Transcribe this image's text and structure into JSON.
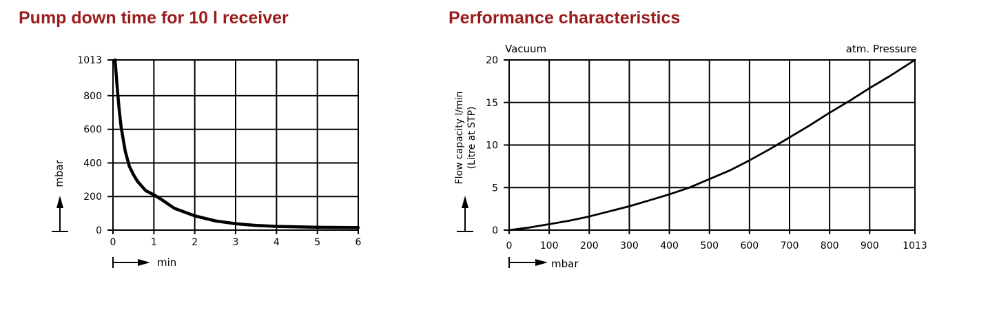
{
  "headings": {
    "left": "Pump down time for 10 l receiver",
    "right": "Performance characteristics"
  },
  "colors": {
    "heading": "#9b1c1c",
    "ink": "#000000",
    "background": "#ffffff"
  },
  "chart_data": [
    {
      "type": "line",
      "title": "Pump down time for 10 l receiver",
      "xlabel": "min",
      "ylabel": "mbar",
      "xlim": [
        0,
        6
      ],
      "ylim": [
        0,
        1013
      ],
      "x_ticks": [
        0,
        1,
        2,
        3,
        4,
        5,
        6
      ],
      "y_ticks": [
        0,
        200,
        400,
        600,
        800,
        1013
      ],
      "x_tick_labels": [
        "0",
        "1",
        "2",
        "3",
        "4",
        "5",
        "6"
      ],
      "y_tick_labels": [
        "0",
        "200",
        "400",
        "600",
        "800",
        "1013"
      ],
      "grid": true,
      "series": [
        {
          "x": [
            0.05,
            0.1,
            0.15,
            0.2,
            0.3,
            0.4,
            0.5,
            0.6,
            0.8,
            1.0,
            1.2,
            1.5,
            2.0,
            2.5,
            3.0,
            3.5,
            4.0,
            5.0,
            6.0
          ],
          "values": [
            1013,
            860,
            720,
            610,
            470,
            380,
            330,
            290,
            235,
            210,
            180,
            130,
            85,
            55,
            38,
            28,
            22,
            17,
            15
          ]
        }
      ]
    },
    {
      "type": "line",
      "title": "Performance characteristics",
      "xlabel": "mbar",
      "ylabel": [
        "Flow capacity l/min",
        "(Litre at STP)"
      ],
      "annotations": {
        "left": "Vacuum",
        "right": "atm. Pressure"
      },
      "xlim": [
        0,
        1013
      ],
      "ylim": [
        0,
        20
      ],
      "x_ticks": [
        0,
        100,
        200,
        300,
        400,
        500,
        600,
        700,
        800,
        900,
        1013
      ],
      "y_ticks": [
        0,
        5,
        10,
        15,
        20
      ],
      "x_tick_labels": [
        "0",
        "100",
        "200",
        "300",
        "400",
        "500",
        "600",
        "700",
        "800",
        "900",
        "1013"
      ],
      "y_tick_labels": [
        "0",
        "5",
        "10",
        "15",
        "20"
      ],
      "grid": true,
      "series": [
        {
          "x": [
            0,
            50,
            100,
            150,
            200,
            250,
            300,
            350,
            400,
            450,
            500,
            550,
            600,
            650,
            700,
            750,
            800,
            850,
            900,
            950,
            1013
          ],
          "values": [
            0,
            0.3,
            0.7,
            1.1,
            1.6,
            2.2,
            2.8,
            3.5,
            4.2,
            5.0,
            6.0,
            7.0,
            8.2,
            9.5,
            10.9,
            12.3,
            13.8,
            15.2,
            16.7,
            18.1,
            20.0
          ]
        }
      ]
    }
  ]
}
